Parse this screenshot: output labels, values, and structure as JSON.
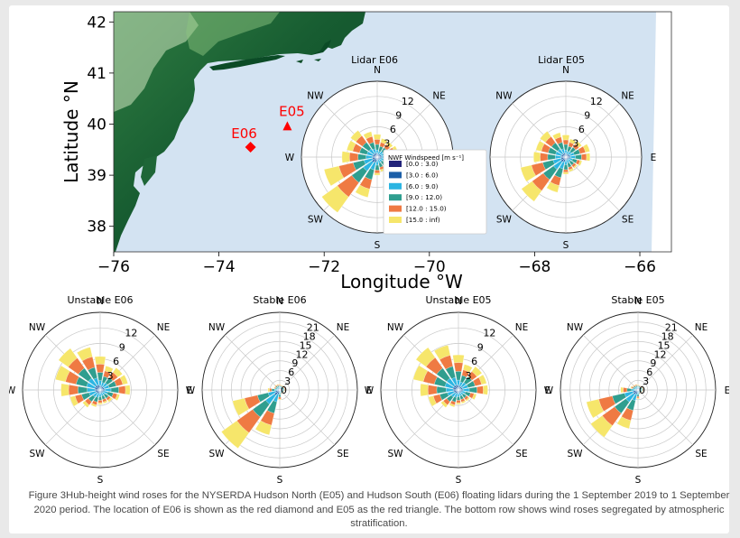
{
  "caption": "Figure 3Hub-height wind roses for the NYSERDA Hudson North (E05) and Hudson South (E06) floating lidars during the 1 September 2019 to 1 September 2020 period. The location of E06 is shown as the red diamond and E05 as the red triangle. The bottom row shows wind roses segregated by atmospheric stratification.",
  "map": {
    "xlabel": "Longitude °W",
    "ylabel": "Latitude °N",
    "xticks": [
      "−76",
      "−74",
      "−72",
      "−70",
      "−68",
      "−66"
    ],
    "yticks": [
      "38",
      "39",
      "40",
      "41",
      "42"
    ],
    "xlim": [
      -76,
      -65.4
    ],
    "ylim": [
      37.5,
      42.2
    ],
    "colors": {
      "ocean": "#d3e3f2",
      "land_dark": "#0d4d26",
      "land_mid": "#4f9a57",
      "land_light": "#bfe0b0",
      "marker": "#ff0000"
    },
    "markers": [
      {
        "label": "E06",
        "shape": "diamond",
        "lon": -73.4,
        "lat": 39.55
      },
      {
        "label": "E05",
        "shape": "triangle",
        "lon": -72.7,
        "lat": 39.95
      }
    ]
  },
  "legend": {
    "title": "NWF Windspeed [m s⁻¹]",
    "entries": [
      "[0.0 : 3.0)",
      "[3.0 : 6.0)",
      "[6.0 : 9.0)",
      "[9.0 : 12.0)",
      "[12.0 : 15.0)",
      "[15.0 : inf)"
    ],
    "colors": [
      "#22237a",
      "#1c5fa8",
      "#2cb5e2",
      "#2f9e8f",
      "#ef7a43",
      "#f6e66b"
    ]
  },
  "chart_data": [
    {
      "type": "windrose",
      "title": "Lidar E06",
      "rmax": 15,
      "rings": [
        "3",
        "6",
        "9",
        "12"
      ],
      "rlabel_dir": "NNE",
      "directions": [
        "N",
        "NNE",
        "NE",
        "ENE",
        "E",
        "ESE",
        "SE",
        "SSE",
        "S",
        "SSW",
        "SW",
        "WSW",
        "W",
        "WNW",
        "NW",
        "NNW"
      ],
      "bins": [
        [
          0.3,
          0.7,
          1.4,
          2.5,
          3.5,
          4.5
        ],
        [
          0.3,
          0.6,
          1.2,
          2.2,
          3,
          3.8
        ],
        [
          0.3,
          0.7,
          1.4,
          2.3,
          3.1,
          3.8
        ],
        [
          0.3,
          0.8,
          1.6,
          2.6,
          3.5,
          4.2
        ],
        [
          0.3,
          0.9,
          2,
          3.2,
          4.3,
          5
        ],
        [
          0.3,
          0.7,
          1.5,
          2.5,
          3.3,
          3.8
        ],
        [
          0.3,
          0.6,
          1.2,
          2,
          2.5,
          2.9
        ],
        [
          0.3,
          0.6,
          1.3,
          2.1,
          2.6,
          3
        ],
        [
          0.3,
          0.7,
          1.6,
          2.6,
          3.2,
          3.6
        ],
        [
          0.3,
          1.1,
          2.6,
          4.6,
          6.5,
          8.2
        ],
        [
          0.3,
          1.3,
          3.4,
          6.2,
          9.7,
          13.5
        ],
        [
          0.3,
          1,
          2.7,
          4.9,
          7.8,
          10.8
        ],
        [
          0.3,
          0.9,
          2.2,
          3.8,
          5.5,
          7
        ],
        [
          0.3,
          0.9,
          2.1,
          3.6,
          5,
          6.2
        ],
        [
          0.3,
          0.9,
          2,
          3.6,
          5.2,
          6.5
        ],
        [
          0.3,
          0.8,
          1.7,
          3,
          4.2,
          5.2
        ]
      ]
    },
    {
      "type": "windrose",
      "title": "Lidar E05",
      "rmax": 15,
      "rings": [
        "3",
        "6",
        "9",
        "12"
      ],
      "rlabel_dir": "NNE",
      "directions": [
        "N",
        "NNE",
        "NE",
        "ENE",
        "E",
        "ESE",
        "SE",
        "SSE",
        "S",
        "SSW",
        "SW",
        "WSW",
        "W",
        "WNW",
        "NW",
        "NNW"
      ],
      "bins": [
        [
          0.3,
          0.7,
          1.4,
          2.5,
          3.4,
          4.4
        ],
        [
          0.3,
          0.6,
          1.2,
          2.2,
          3,
          3.7
        ],
        [
          0.3,
          0.7,
          1.4,
          2.4,
          3.2,
          3.9
        ],
        [
          0.3,
          0.8,
          1.7,
          2.9,
          4,
          4.9
        ],
        [
          0.3,
          0.9,
          1.9,
          3.1,
          4.1,
          4.8
        ],
        [
          0.3,
          0.7,
          1.4,
          2.3,
          2.9,
          3.3
        ],
        [
          0.3,
          0.6,
          1.2,
          2,
          2.5,
          2.8
        ],
        [
          0.3,
          0.6,
          1.3,
          2.1,
          2.6,
          3
        ],
        [
          0.3,
          0.7,
          1.5,
          2.5,
          3,
          3.4
        ],
        [
          0.3,
          1,
          2.4,
          4.2,
          5.8,
          7.2
        ],
        [
          0.3,
          1.2,
          3,
          5.5,
          8.2,
          10.8
        ],
        [
          0.3,
          1,
          2.6,
          4.7,
          7,
          9.2
        ],
        [
          0.3,
          0.9,
          2.1,
          3.6,
          5.1,
          6.4
        ],
        [
          0.3,
          0.9,
          2.1,
          3.6,
          5,
          6.1
        ],
        [
          0.3,
          0.9,
          2,
          3.5,
          5,
          6.3
        ],
        [
          0.3,
          0.8,
          1.7,
          3,
          4.1,
          5
        ]
      ]
    },
    {
      "type": "windrose",
      "title": "Unstable E06",
      "rmax": 15,
      "rings": [
        "3",
        "6",
        "9",
        "12"
      ],
      "rlabel_dir": "NNE",
      "directions": [
        "N",
        "NNE",
        "NE",
        "ENE",
        "E",
        "ESE",
        "SE",
        "SSE",
        "S",
        "SSW",
        "SW",
        "WSW",
        "W",
        "WNW",
        "NW",
        "NNW"
      ],
      "bins": [
        [
          0.3,
          0.8,
          1.8,
          3.4,
          5,
          6.5
        ],
        [
          0.3,
          0.7,
          1.5,
          2.7,
          3.8,
          4.8
        ],
        [
          0.3,
          0.8,
          1.7,
          3,
          4.2,
          5.3
        ],
        [
          0.3,
          0.8,
          1.8,
          3.2,
          4.5,
          5.5
        ],
        [
          0.3,
          0.9,
          2.1,
          3.6,
          4.9,
          5.8
        ],
        [
          0.3,
          0.7,
          1.5,
          2.6,
          3.4,
          3.9
        ],
        [
          0.3,
          0.6,
          1.2,
          2,
          2.5,
          2.9
        ],
        [
          0.3,
          0.6,
          1.2,
          1.9,
          2.4,
          2.7
        ],
        [
          0.3,
          0.6,
          1.3,
          2,
          2.5,
          2.8
        ],
        [
          0.3,
          0.7,
          1.5,
          2.4,
          3,
          3.4
        ],
        [
          0.3,
          0.8,
          1.7,
          2.8,
          3.6,
          4.2
        ],
        [
          0.3,
          0.9,
          2.2,
          3.7,
          5,
          6
        ],
        [
          0.3,
          1,
          2.5,
          4.3,
          6.1,
          7.6
        ],
        [
          0.3,
          1.1,
          2.7,
          4.8,
          6.9,
          8.9
        ],
        [
          0.3,
          1.1,
          2.8,
          5.2,
          7.6,
          9.9
        ],
        [
          0.3,
          1,
          2.4,
          4.5,
          6.6,
          8.5
        ]
      ]
    },
    {
      "type": "windrose",
      "title": "Stable E06",
      "rmax": 24,
      "rings": [
        "0",
        "3",
        "6",
        "9",
        "12",
        "15",
        "18",
        "21"
      ],
      "rlabel_dir": "NNE",
      "directions": [
        "N",
        "NNE",
        "NE",
        "ENE",
        "E",
        "ESE",
        "SE",
        "SSE",
        "S",
        "SSW",
        "SW",
        "WSW",
        "W",
        "WNW",
        "NW",
        "NNW"
      ],
      "bins": [
        [
          0.3,
          0.6,
          1,
          1.3,
          1.6,
          1.8
        ],
        [
          0.3,
          0.6,
          0.9,
          1.2,
          1.4,
          1.6
        ],
        [
          0.3,
          0.6,
          1,
          1.3,
          1.5,
          1.7
        ],
        [
          0.3,
          0.6,
          1,
          1.4,
          1.7,
          1.9
        ],
        [
          0.3,
          0.7,
          1.1,
          1.5,
          1.8,
          2
        ],
        [
          0.3,
          0.6,
          0.9,
          1.2,
          1.4,
          1.5
        ],
        [
          0.3,
          0.5,
          0.8,
          1,
          1.2,
          1.3
        ],
        [
          0.3,
          0.5,
          0.8,
          1.1,
          1.3,
          1.4
        ],
        [
          0.3,
          0.7,
          1.4,
          2.2,
          2.8,
          3.1
        ],
        [
          0.3,
          1.4,
          3.8,
          7.4,
          11.2,
          14.3
        ],
        [
          0.3,
          2,
          5.4,
          10.3,
          16.3,
          22.2
        ],
        [
          0.3,
          1.4,
          3.7,
          7.1,
          11.2,
          15
        ],
        [
          0.3,
          0.8,
          1.6,
          2.5,
          3.2,
          3.7
        ],
        [
          0.3,
          0.6,
          1,
          1.4,
          1.7,
          1.9
        ],
        [
          0.3,
          0.6,
          1,
          1.5,
          1.8,
          2
        ],
        [
          0.3,
          0.6,
          1,
          1.4,
          1.7,
          1.9
        ]
      ]
    },
    {
      "type": "windrose",
      "title": "Unstable E05",
      "rmax": 15,
      "rings": [
        "3",
        "6",
        "9",
        "12"
      ],
      "rlabel_dir": "NNE",
      "directions": [
        "N",
        "NNE",
        "NE",
        "ENE",
        "E",
        "ESE",
        "SE",
        "SSE",
        "S",
        "SSW",
        "SW",
        "WSW",
        "W",
        "WNW",
        "NW",
        "NNW"
      ],
      "bins": [
        [
          0.3,
          0.9,
          1.9,
          3.6,
          5.3,
          6.8
        ],
        [
          0.3,
          0.7,
          1.6,
          2.9,
          4,
          5.1
        ],
        [
          0.3,
          0.8,
          1.8,
          3.2,
          4.4,
          5.6
        ],
        [
          0.3,
          0.8,
          1.9,
          3.3,
          4.6,
          5.6
        ],
        [
          0.3,
          0.9,
          2.1,
          3.6,
          4.8,
          5.7
        ],
        [
          0.3,
          0.7,
          1.4,
          2.4,
          3.1,
          3.6
        ],
        [
          0.3,
          0.6,
          1.2,
          1.9,
          2.4,
          2.7
        ],
        [
          0.3,
          0.6,
          1.2,
          1.9,
          2.4,
          2.7
        ],
        [
          0.3,
          0.6,
          1.3,
          2,
          2.5,
          2.8
        ],
        [
          0.3,
          0.7,
          1.5,
          2.4,
          3,
          3.4
        ],
        [
          0.3,
          0.8,
          1.7,
          2.8,
          3.6,
          4.2
        ],
        [
          0.3,
          0.9,
          2.2,
          3.7,
          5,
          6
        ],
        [
          0.3,
          1,
          2.4,
          4.2,
          5.9,
          7.4
        ],
        [
          0.3,
          1.1,
          2.7,
          4.8,
          7,
          9
        ],
        [
          0.3,
          1.1,
          2.8,
          5.2,
          7.7,
          10.1
        ],
        [
          0.3,
          1,
          2.5,
          4.7,
          6.9,
          8.9
        ]
      ]
    },
    {
      "type": "windrose",
      "title": "Stable E05",
      "rmax": 24,
      "rings": [
        "0",
        "3",
        "6",
        "9",
        "12",
        "15",
        "18",
        "21"
      ],
      "rlabel_dir": "NNE",
      "directions": [
        "N",
        "NNE",
        "NE",
        "ENE",
        "E",
        "ESE",
        "SE",
        "SSE",
        "S",
        "SSW",
        "SW",
        "WSW",
        "W",
        "WNW",
        "NW",
        "NNW"
      ],
      "bins": [
        [
          0.3,
          0.6,
          1,
          1.3,
          1.5,
          1.7
        ],
        [
          0.3,
          0.6,
          0.9,
          1.2,
          1.4,
          1.5
        ],
        [
          0.3,
          0.6,
          1,
          1.3,
          1.5,
          1.6
        ],
        [
          0.3,
          0.6,
          1,
          1.4,
          1.6,
          1.8
        ],
        [
          0.3,
          0.7,
          1.1,
          1.5,
          1.8,
          2
        ],
        [
          0.3,
          0.6,
          0.9,
          1.2,
          1.4,
          1.5
        ],
        [
          0.3,
          0.5,
          0.8,
          1,
          1.2,
          1.3
        ],
        [
          0.3,
          0.5,
          0.8,
          1.1,
          1.3,
          1.4
        ],
        [
          0.3,
          0.7,
          1.3,
          2,
          2.5,
          2.8
        ],
        [
          0.3,
          1.3,
          3.4,
          6.5,
          9.7,
          12.3
        ],
        [
          0.3,
          1.7,
          4.6,
          8.9,
          13.6,
          18
        ],
        [
          0.3,
          1.6,
          4.3,
          8.2,
          12.5,
          16.4
        ],
        [
          0.3,
          0.9,
          2,
          3.4,
          4.6,
          5.4
        ],
        [
          0.3,
          0.7,
          1.2,
          1.7,
          2.1,
          2.4
        ],
        [
          0.3,
          0.6,
          1.1,
          1.5,
          1.8,
          2
        ],
        [
          0.3,
          0.6,
          1,
          1.4,
          1.7,
          1.9
        ]
      ]
    }
  ]
}
